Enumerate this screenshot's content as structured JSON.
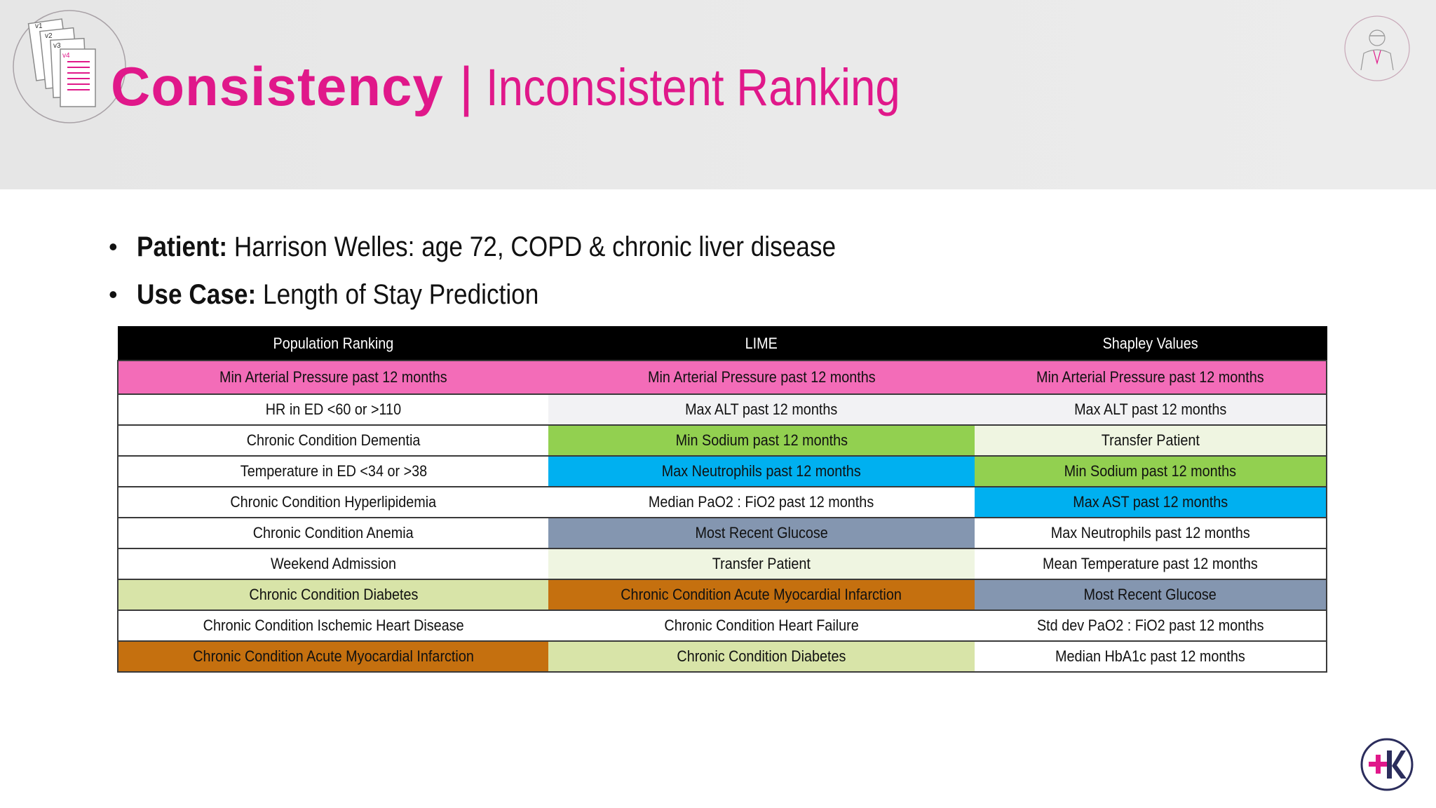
{
  "slide": {
    "title_main": "Consistency",
    "title_separator": "|",
    "title_sub": "Inconsistent Ranking",
    "accent_color": "#e0188a"
  },
  "logo_left": {
    "labels": [
      "v1",
      "v2",
      "v3",
      "v4"
    ]
  },
  "bullets": [
    {
      "label": "Patient:",
      "text": " Harrison Welles: age 72, COPD & chronic liver disease"
    },
    {
      "label": "Use Case:",
      "text": " Length of Stay Prediction"
    }
  ],
  "table": {
    "headers": [
      "Population Ranking",
      "LIME",
      "Shapley Values"
    ],
    "rows": [
      [
        {
          "text": "Min Arterial Pressure past 12 months",
          "color": "#f36cb8"
        },
        {
          "text": "Min Arterial Pressure past 12 months",
          "color": "#f36cb8"
        },
        {
          "text": "Min Arterial Pressure past 12 months",
          "color": "#f36cb8"
        }
      ],
      [
        {
          "text": "HR in ED <60 or >110",
          "color": "#ffffff"
        },
        {
          "text": "Max ALT past 12 months",
          "color": "#f2f2f4"
        },
        {
          "text": "Max ALT past 12 months",
          "color": "#f2f2f4"
        }
      ],
      [
        {
          "text": "Chronic Condition Dementia",
          "color": "#ffffff"
        },
        {
          "text": "Min Sodium past 12 months",
          "color": "#92d050"
        },
        {
          "text": "Transfer Patient",
          "color": "#eff5e1"
        }
      ],
      [
        {
          "text": "Temperature in ED <34 or >38",
          "color": "#ffffff"
        },
        {
          "text": "Max Neutrophils past 12 months",
          "color": "#00b0f0"
        },
        {
          "text": "Min Sodium past 12 months",
          "color": "#92d050"
        }
      ],
      [
        {
          "text": "Chronic Condition Hyperlipidemia",
          "color": "#ffffff"
        },
        {
          "text": "Median PaO2 : FiO2 past 12 months",
          "color": "#ffffff"
        },
        {
          "text": "Max AST past 12 months",
          "color": "#00b0f0"
        }
      ],
      [
        {
          "text": "Chronic Condition Anemia",
          "color": "#ffffff"
        },
        {
          "text": "Most Recent Glucose",
          "color": "#8496b0"
        },
        {
          "text": "Max Neutrophils past 12 months",
          "color": "#ffffff"
        }
      ],
      [
        {
          "text": "Weekend Admission",
          "color": "#ffffff"
        },
        {
          "text": "Transfer Patient",
          "color": "#eff5e1"
        },
        {
          "text": "Mean Temperature past 12 months",
          "color": "#ffffff"
        }
      ],
      [
        {
          "text": "Chronic Condition Diabetes",
          "color": "#d8e4a8"
        },
        {
          "text": "Chronic Condition Acute Myocardial Infarction",
          "color": "#c5700f"
        },
        {
          "text": "Most Recent Glucose",
          "color": "#8496b0"
        }
      ],
      [
        {
          "text": "Chronic Condition Ischemic Heart Disease",
          "color": "#ffffff"
        },
        {
          "text": "Chronic Condition Heart Failure",
          "color": "#ffffff"
        },
        {
          "text": "Std dev PaO2 : FiO2 past 12 months",
          "color": "#ffffff"
        }
      ],
      [
        {
          "text": "Chronic Condition Acute Myocardial Infarction",
          "color": "#c5700f"
        },
        {
          "text": "Chronic Condition Diabetes",
          "color": "#d8e4a8"
        },
        {
          "text": "Median HbA1c past 12 months",
          "color": "#ffffff"
        }
      ]
    ]
  },
  "icons": {
    "top_left": "versioned-documents-icon",
    "top_right": "person-in-suit-icon",
    "bottom_right": "plus-k-logo-icon"
  }
}
